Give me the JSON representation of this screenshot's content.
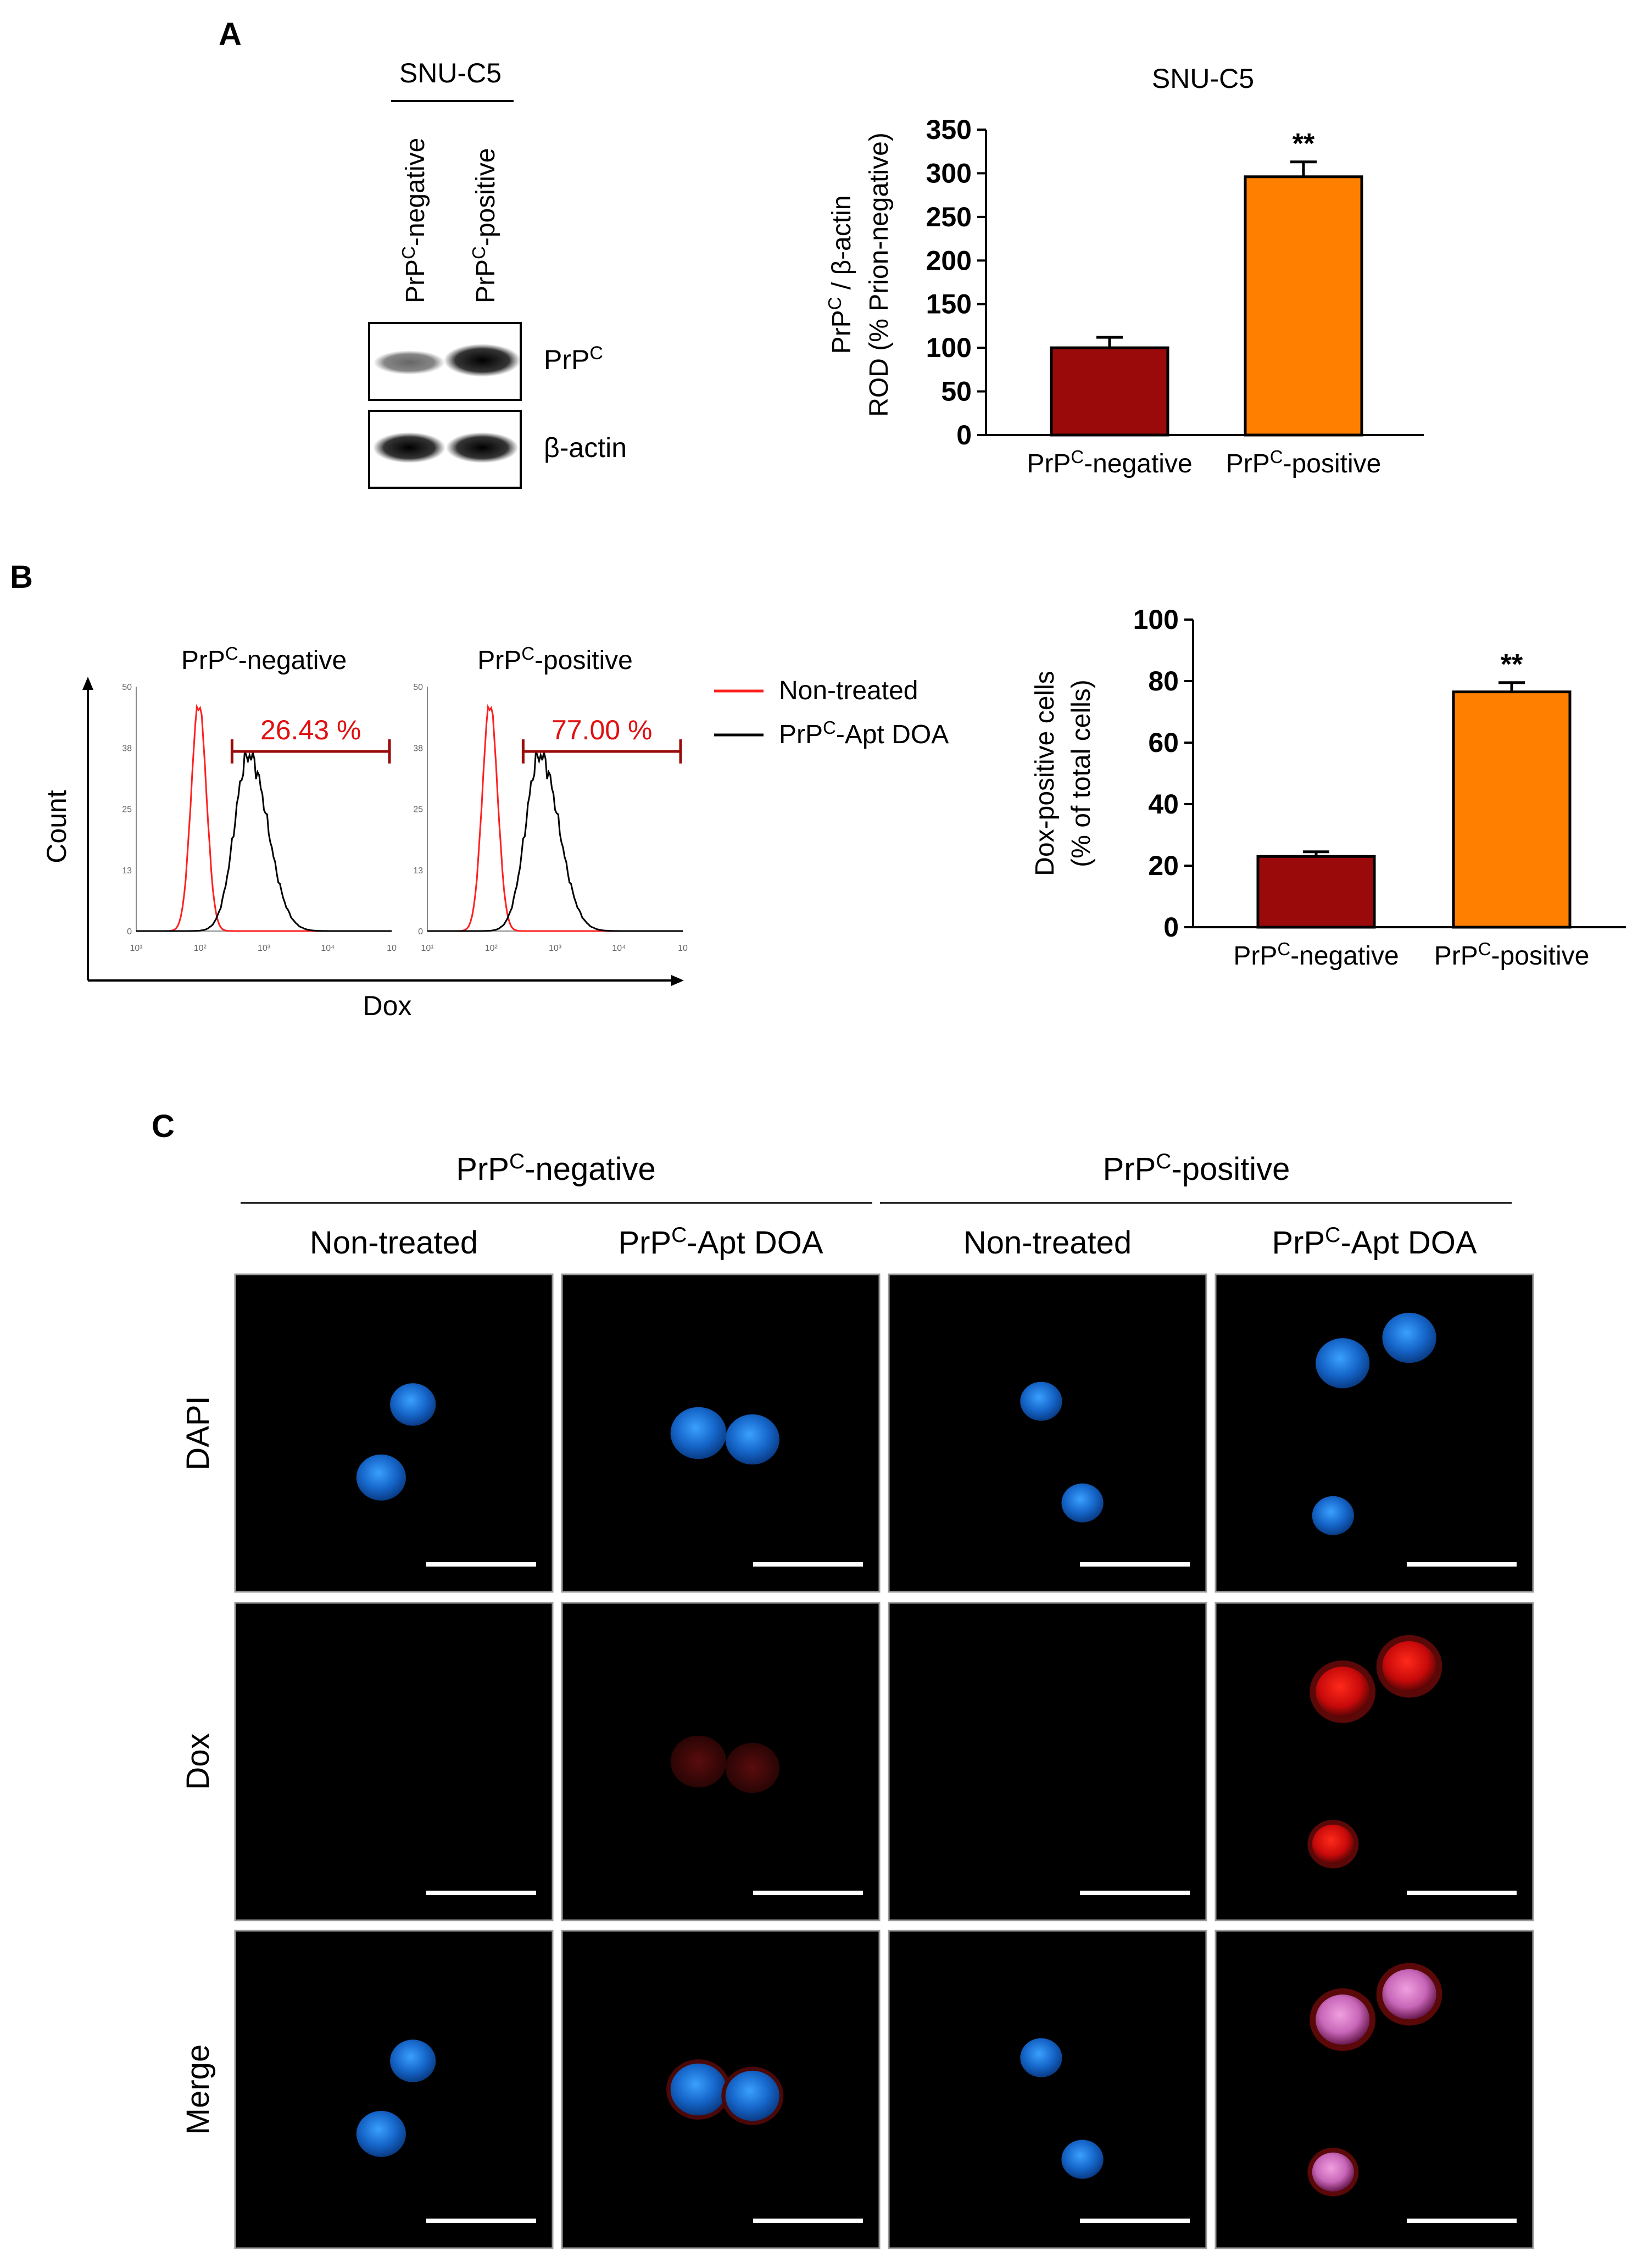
{
  "panel_labels": {
    "a": "A",
    "b": "B",
    "c": "C"
  },
  "colors": {
    "negative_bar": "#9b0a0a",
    "positive_bar": "#ff8000",
    "flow_nontreated": "#ff2020",
    "flow_treated": "#000000",
    "gate": "#9b0a0a",
    "gate_text": "#e01010",
    "dapi": "#1565c8",
    "dox": "#d81010",
    "merge": "#d874c8"
  },
  "western": {
    "header": "SNU-C5",
    "lane_labels": [
      {
        "base": "PrP",
        "sup": "C",
        "rest": "-negative"
      },
      {
        "base": "PrP",
        "sup": "C",
        "rest": "-positive"
      }
    ],
    "bands": [
      {
        "base": "PrP",
        "sup": "C",
        "rest": ""
      },
      {
        "base": "β-actin",
        "sup": "",
        "rest": ""
      }
    ]
  },
  "chart_data": [
    {
      "id": "rod",
      "type": "bar",
      "title": "SNU-C5",
      "ylabel_line1": {
        "base": "PrP",
        "sup": "C",
        "rest": " / β-actin"
      },
      "ylabel_line2": "ROD (% Prion-negative)",
      "ylim": [
        0,
        350
      ],
      "yticks": [
        "0",
        "50",
        "100",
        "150",
        "200",
        "250",
        "300",
        "350"
      ],
      "categories": [
        {
          "base": "PrP",
          "sup": "C",
          "rest": "-negative"
        },
        {
          "base": "PrP",
          "sup": "C",
          "rest": "-positive"
        }
      ],
      "values": [
        100,
        296
      ],
      "errors": [
        12,
        17
      ],
      "significance": [
        "",
        "**"
      ]
    },
    {
      "id": "dox_cells",
      "type": "bar",
      "title": "",
      "ylabel_line1": {
        "base": "Dox-positive cells",
        "sup": "",
        "rest": ""
      },
      "ylabel_line2": "(% of total cells)",
      "ylim": [
        0,
        100
      ],
      "yticks": [
        "0",
        "20",
        "40",
        "60",
        "80",
        "100"
      ],
      "categories": [
        {
          "base": "PrP",
          "sup": "C",
          "rest": "-negative"
        },
        {
          "base": "PrP",
          "sup": "C",
          "rest": "-positive"
        }
      ],
      "values": [
        23,
        76.5
      ],
      "errors": [
        1.5,
        3
      ],
      "significance": [
        "",
        "**"
      ]
    }
  ],
  "flow": {
    "ylabel": "Count",
    "xlabel": "Dox",
    "yticks": [
      "0",
      "13",
      "25",
      "38",
      "50"
    ],
    "xticks": [
      "10¹",
      "10²",
      "10³",
      "10⁴",
      "10"
    ],
    "histograms": [
      {
        "title": {
          "base": "PrP",
          "sup": "C",
          "rest": "-negative"
        },
        "gate_label": "26.43 %"
      },
      {
        "title": {
          "base": "PrP",
          "sup": "C",
          "rest": "-positive"
        },
        "gate_label": "77.00 %"
      }
    ],
    "legend": [
      {
        "base": "Non-treated",
        "sup": "",
        "rest": ""
      },
      {
        "base": "PrP",
        "sup": "C",
        "rest": "-Apt DOA"
      }
    ]
  },
  "micro": {
    "groups": [
      {
        "base": "PrP",
        "sup": "C",
        "rest": "-negative"
      },
      {
        "base": "PrP",
        "sup": "C",
        "rest": "-positive"
      }
    ],
    "columns": [
      {
        "base": "Non-treated",
        "sup": "",
        "rest": ""
      },
      {
        "base": "PrP",
        "sup": "C",
        "rest": "-Apt DOA"
      },
      {
        "base": "Non-treated",
        "sup": "",
        "rest": ""
      },
      {
        "base": "PrP",
        "sup": "C",
        "rest": "-Apt DOA"
      }
    ],
    "rows": [
      "DAPI",
      "Dox",
      "Merge"
    ]
  }
}
